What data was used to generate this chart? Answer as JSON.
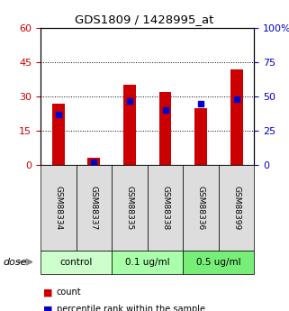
{
  "title": "GDS1809 / 1428995_at",
  "samples": [
    "GSM88334",
    "GSM88337",
    "GSM88335",
    "GSM88338",
    "GSM88336",
    "GSM88399"
  ],
  "counts": [
    27,
    3,
    35,
    32,
    25,
    42
  ],
  "percentiles": [
    37,
    2,
    47,
    40,
    45,
    48
  ],
  "left_ylim": [
    0,
    60
  ],
  "right_ylim": [
    0,
    100
  ],
  "left_yticks": [
    0,
    15,
    30,
    45,
    60
  ],
  "right_yticks": [
    0,
    25,
    50,
    75,
    100
  ],
  "left_yticklabels": [
    "0",
    "15",
    "30",
    "45",
    "60"
  ],
  "right_yticklabels": [
    "0",
    "25",
    "50",
    "75",
    "100%"
  ],
  "bar_color": "#cc0000",
  "marker_color": "#0000cc",
  "groups": [
    {
      "label": "control",
      "samples": [
        "GSM88334",
        "GSM88337"
      ],
      "color": "#ccffcc"
    },
    {
      "label": "0.1 ug/ml",
      "samples": [
        "GSM88335",
        "GSM88338"
      ],
      "color": "#aaffaa"
    },
    {
      "label": "0.5 ug/ml",
      "samples": [
        "GSM88336",
        "GSM88399"
      ],
      "color": "#77ee77"
    }
  ],
  "dose_label": "dose",
  "legend_count": "count",
  "legend_percentile": "percentile rank within the sample",
  "background_color": "#ffffff",
  "label_area_color": "#dddddd"
}
